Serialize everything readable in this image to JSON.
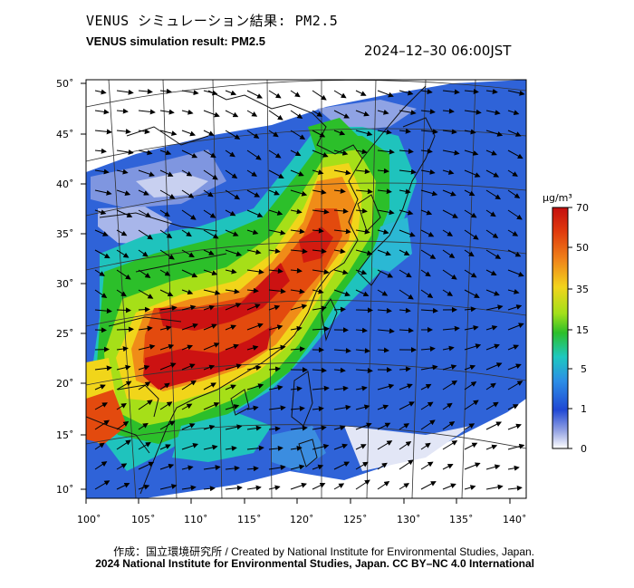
{
  "header": {
    "title_jp": "VENUS シミュレーション結果: PM2.5",
    "title_en": "VENUS simulation result: PM2.5",
    "timestamp": "2024–12–30 06:00JST"
  },
  "axes": {
    "lat_ticks": [
      "50˚",
      "45˚",
      "40˚",
      "35˚",
      "30˚",
      "25˚",
      "20˚",
      "15˚",
      "10˚"
    ],
    "lon_ticks": [
      "100˚",
      "105˚",
      "110˚",
      "115˚",
      "120˚",
      "125˚",
      "130˚",
      "135˚",
      "140˚"
    ]
  },
  "colorbar": {
    "unit": "μg/m³",
    "labels": [
      "70",
      "50",
      "35",
      "15",
      "5",
      "1",
      "0"
    ],
    "colors": [
      "#d01010",
      "#e84c0c",
      "#f7a51c",
      "#f2e418",
      "#8ddd16",
      "#2bc02b",
      "#21c9c2",
      "#2f8fe8",
      "#2050d8",
      "#8c9ee0",
      "#f4f4fb"
    ]
  },
  "footer": {
    "credit_line": "作成：国立環境研究所 / Created by National Institute for Environmental Studies, Japan.",
    "copyright_line": "2024 National Institute for Environmental Studies, Japan. CC BY–NC 4.0 International"
  }
}
